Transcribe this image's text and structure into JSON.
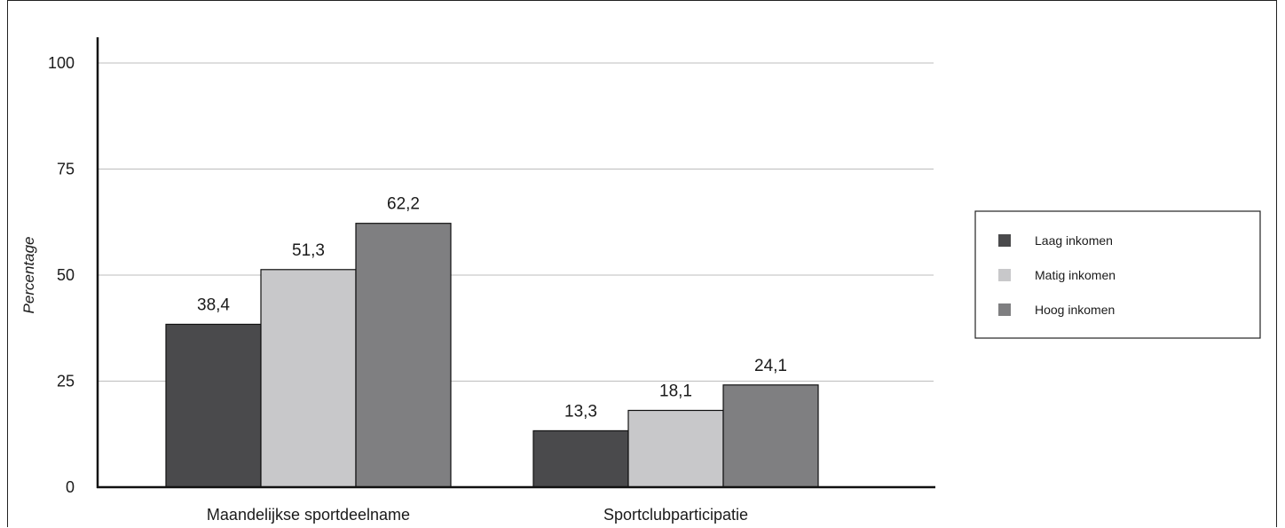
{
  "chart_data": {
    "type": "bar",
    "categories": [
      "Maandelijkse sportdeelname",
      "Sportclubparticipatie"
    ],
    "series": [
      {
        "name": "Laag inkomen",
        "values": [
          38.4,
          13.3
        ],
        "labels": [
          "38,4",
          "13,3"
        ],
        "color": "#4a4a4c"
      },
      {
        "name": "Matig inkomen",
        "values": [
          51.3,
          18.1
        ],
        "labels": [
          "51,3",
          "18,1"
        ],
        "color": "#c8c8ca"
      },
      {
        "name": "Hoog inkomen",
        "values": [
          62.2,
          24.1
        ],
        "labels": [
          "62,2",
          "24,1"
        ],
        "color": "#7f7f81"
      }
    ],
    "ylabel": "Percentage",
    "xlabel": "",
    "ylim": [
      0,
      100
    ],
    "yticks": [
      0,
      25,
      50,
      75,
      100
    ],
    "grid": true,
    "legend_position": "right"
  }
}
